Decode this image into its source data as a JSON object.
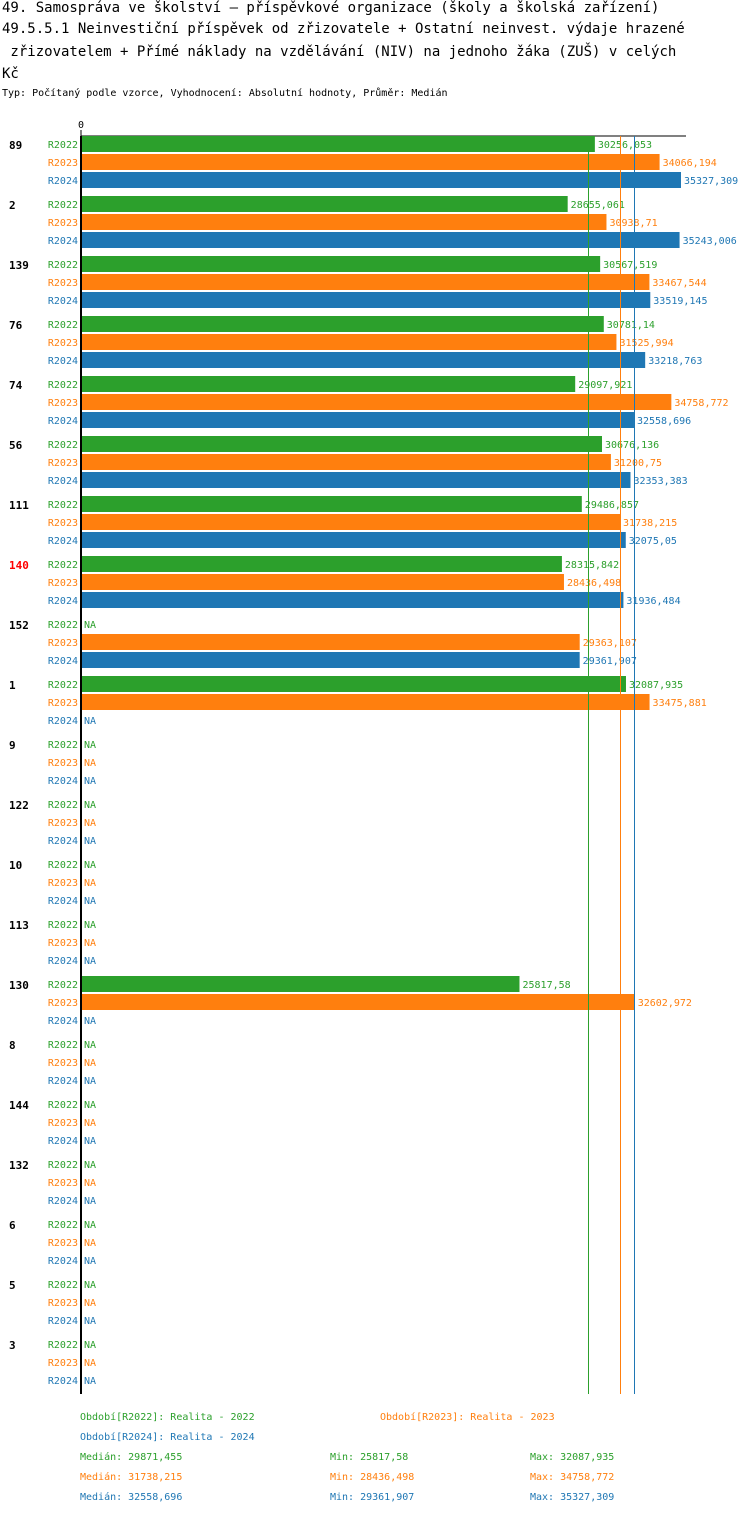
{
  "title_lines": [
    "49. Samospráva ve školství – příspěvkové organizace (školy a školská zařízení)",
    "49.5.5.1 Neinvestiční příspěvek od zřizovatele + Ostatní neinvest. výdaje hrazené",
    " zřizovatelem + Přímé náklady na vzdělávání (NIV) na jednoho žáka (ZUŠ) v celých",
    "Kč"
  ],
  "subtitle": "Typ: Počítaný podle vzorce, Vyhodnocení: Absolutní hodnoty, Průměr: Medián",
  "colors": {
    "R2022": "#2ca02c",
    "R2023": "#ff7f0e",
    "R2024": "#1f77b4",
    "highlight": "#ff0000"
  },
  "chart_data": {
    "type": "bar",
    "orientation": "horizontal",
    "axis_zero_label": "0",
    "xlim": [
      0,
      35327.309
    ],
    "series_names": [
      "R2022",
      "R2023",
      "R2024"
    ],
    "highlighted_category": "140",
    "categories": [
      "89",
      "2",
      "139",
      "76",
      "74",
      "56",
      "111",
      "140",
      "152",
      "1",
      "9",
      "122",
      "10",
      "113",
      "130",
      "8",
      "144",
      "132",
      "6",
      "5",
      "3"
    ],
    "series": [
      {
        "name": "R2022",
        "values": [
          30256.053,
          28655.061,
          30567.519,
          30781.14,
          29097.921,
          30676.136,
          29486.857,
          28315.842,
          null,
          32087.935,
          null,
          null,
          null,
          null,
          25817.58,
          null,
          null,
          null,
          null,
          null,
          null
        ]
      },
      {
        "name": "R2023",
        "values": [
          34066.194,
          30938.71,
          33467.544,
          31525.994,
          34758.772,
          31200.75,
          31738.215,
          28436.498,
          29363.107,
          33475.881,
          null,
          null,
          null,
          null,
          32602.972,
          null,
          null,
          null,
          null,
          null,
          null
        ]
      },
      {
        "name": "R2024",
        "values": [
          35327.309,
          35243.006,
          33519.145,
          33218.763,
          32558.696,
          32353.383,
          32075.05,
          31936.484,
          29361.907,
          null,
          null,
          null,
          null,
          null,
          null,
          null,
          null,
          null,
          null,
          null,
          null
        ]
      }
    ],
    "value_labels": [
      [
        "30256,053",
        "34066,194",
        "35327,309"
      ],
      [
        "28655,061",
        "30938,71",
        "35243,006"
      ],
      [
        "30567,519",
        "33467,544",
        "33519,145"
      ],
      [
        "30781,14",
        "31525,994",
        "33218,763"
      ],
      [
        "29097,921",
        "34758,772",
        "32558,696"
      ],
      [
        "30676,136",
        "31200,75",
        "32353,383"
      ],
      [
        "29486,857",
        "31738,215",
        "32075,05"
      ],
      [
        "28315,842",
        "28436,498",
        "31936,484"
      ],
      [
        "NA",
        "29363,107",
        "29361,907"
      ],
      [
        "32087,935",
        "33475,881",
        "NA"
      ],
      [
        "NA",
        "NA",
        "NA"
      ],
      [
        "NA",
        "NA",
        "NA"
      ],
      [
        "NA",
        "NA",
        "NA"
      ],
      [
        "NA",
        "NA",
        "NA"
      ],
      [
        "25817,58",
        "32602,972",
        "NA"
      ],
      [
        "NA",
        "NA",
        "NA"
      ],
      [
        "NA",
        "NA",
        "NA"
      ],
      [
        "NA",
        "NA",
        "NA"
      ],
      [
        "NA",
        "NA",
        "NA"
      ],
      [
        "NA",
        "NA",
        "NA"
      ],
      [
        "NA",
        "NA",
        "NA"
      ]
    ],
    "reference_lines": [
      {
        "series": "R2022",
        "value": 29871.455
      },
      {
        "series": "R2023",
        "value": 31738.215
      },
      {
        "series": "R2024",
        "value": 32558.696
      }
    ]
  },
  "legend": {
    "periods": [
      "Období[R2022]: Realita - 2022",
      "Období[R2023]: Realita - 2023",
      "Období[R2024]: Realita - 2024"
    ],
    "stats": [
      {
        "median": "Medián: 29871,455",
        "min": "Min: 25817,58",
        "max": "Max: 32087,935"
      },
      {
        "median": "Medián: 31738,215",
        "min": "Min: 28436,498",
        "max": "Max: 34758,772"
      },
      {
        "median": "Medián: 32558,696",
        "min": "Min: 29361,907",
        "max": "Max: 35327,309"
      }
    ]
  }
}
